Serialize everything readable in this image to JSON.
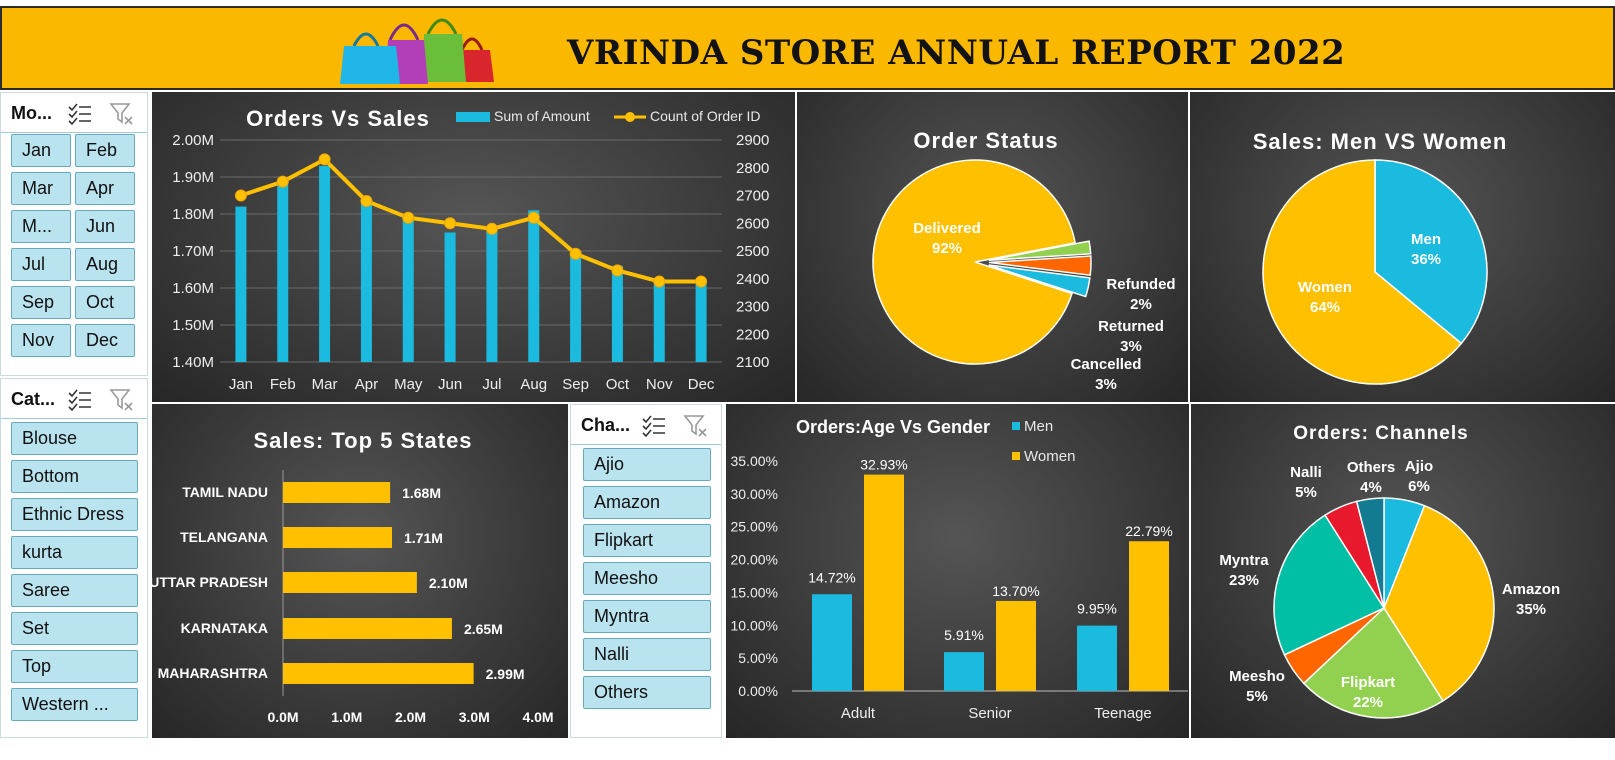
{
  "header": {
    "title": "VRINDA STORE ANNUAL REPORT 2022"
  },
  "slicers": {
    "month": {
      "title": "Mo...",
      "items": [
        "Jan",
        "Feb",
        "Mar",
        "Apr",
        "M...",
        "Jun",
        "Jul",
        "Aug",
        "Sep",
        "Oct",
        "Nov",
        "Dec"
      ]
    },
    "category": {
      "title": "Cat...",
      "items": [
        "Blouse",
        "Bottom",
        "Ethnic Dress",
        "kurta",
        "Saree",
        "Set",
        "Top",
        "Western ..."
      ]
    },
    "channel": {
      "title": "Cha...",
      "items": [
        "Ajio",
        "Amazon",
        "Flipkart",
        "Meesho",
        "Myntra",
        "Nalli",
        "Others"
      ]
    }
  },
  "colors": {
    "cyan": "#1BBBE0",
    "gold": "#FFC000",
    "green": "#92D050",
    "orange": "#FF6600",
    "teal": "#00BFA5",
    "red": "#E8192C",
    "darkteal": "#127A91",
    "banner": "#FBB800"
  },
  "chart_data": [
    {
      "type": "bar",
      "title": "Orders Vs Sales",
      "categories": [
        "Jan",
        "Feb",
        "Mar",
        "Apr",
        "May",
        "Jun",
        "Jul",
        "Aug",
        "Sep",
        "Oct",
        "Nov",
        "Dec"
      ],
      "series": [
        {
          "name": "Sum of Amount",
          "type": "bar",
          "axis": "left",
          "values": [
            1.82,
            1.88,
            1.93,
            1.83,
            1.79,
            1.75,
            1.76,
            1.81,
            1.69,
            1.66,
            1.61,
            1.61
          ]
        },
        {
          "name": "Count of Order ID",
          "type": "line",
          "axis": "right",
          "values": [
            2700,
            2750,
            2830,
            2680,
            2620,
            2600,
            2580,
            2620,
            2490,
            2430,
            2390,
            2390
          ]
        }
      ],
      "ylim_left": [
        1.4,
        2.0
      ],
      "yticks_left": [
        "1.40M",
        "1.50M",
        "1.60M",
        "1.70M",
        "1.80M",
        "1.90M",
        "2.00M"
      ],
      "ylim_right": [
        2100,
        2900
      ],
      "yticks_right": [
        "2100",
        "2200",
        "2300",
        "2400",
        "2500",
        "2600",
        "2700",
        "2800",
        "2900"
      ],
      "legend": "top-right",
      "grid": true
    },
    {
      "type": "pie",
      "title": "Order Status",
      "slices": [
        {
          "label": "Delivered",
          "value": 92,
          "pct": "92%",
          "color": "#FFC000"
        },
        {
          "label": "Refunded",
          "value": 2,
          "pct": "2%",
          "color": "#92D050"
        },
        {
          "label": "Returned",
          "value": 3,
          "pct": "3%",
          "color": "#FF6600"
        },
        {
          "label": "Cancelled",
          "value": 3,
          "pct": "3%",
          "color": "#1BBBE0"
        }
      ]
    },
    {
      "type": "pie",
      "title": "Sales: Men VS Women",
      "slices": [
        {
          "label": "Men",
          "value": 36,
          "pct": "36%",
          "color": "#1BBBE0"
        },
        {
          "label": "Women",
          "value": 64,
          "pct": "64%",
          "color": "#FFC000"
        }
      ]
    },
    {
      "type": "bar",
      "orientation": "horizontal",
      "title": "Sales: Top 5 States",
      "categories": [
        "TAMIL NADU",
        "TELANGANA",
        "UTTAR PRADESH",
        "KARNATAKA",
        "MAHARASHTRA"
      ],
      "values": [
        1.68,
        1.71,
        2.1,
        2.65,
        2.99
      ],
      "labels": [
        "1.68M",
        "1.71M",
        "2.10M",
        "2.65M",
        "2.99M"
      ],
      "xlim": [
        0,
        4
      ],
      "xticks": [
        "0.0M",
        "1.0M",
        "2.0M",
        "3.0M",
        "4.0M"
      ]
    },
    {
      "type": "bar",
      "title": "Orders:Age Vs Gender",
      "categories": [
        "Adult",
        "Senior",
        "Teenage"
      ],
      "series": [
        {
          "name": "Men",
          "values": [
            14.72,
            5.91,
            9.95
          ],
          "labels": [
            "14.72%",
            "5.91%",
            "9.95%"
          ]
        },
        {
          "name": "Women",
          "values": [
            32.93,
            13.7,
            22.79
          ],
          "labels": [
            "32.93%",
            "13.70%",
            "22.79%"
          ]
        }
      ],
      "ylim": [
        0,
        35
      ],
      "yticks": [
        "0.00%",
        "5.00%",
        "10.00%",
        "15.00%",
        "20.00%",
        "25.00%",
        "30.00%",
        "35.00%"
      ],
      "legend": "top-right"
    },
    {
      "type": "pie",
      "title": "Orders: Channels",
      "slices": [
        {
          "label": "Ajio",
          "value": 6,
          "pct": "6%",
          "color": "#1BBBE0"
        },
        {
          "label": "Amazon",
          "value": 35,
          "pct": "35%",
          "color": "#FFC000"
        },
        {
          "label": "Flipkart",
          "value": 22,
          "pct": "22%",
          "color": "#92D050"
        },
        {
          "label": "Meesho",
          "value": 5,
          "pct": "5%",
          "color": "#FF6600"
        },
        {
          "label": "Myntra",
          "value": 23,
          "pct": "23%",
          "color": "#00BFA5"
        },
        {
          "label": "Nalli",
          "value": 5,
          "pct": "5%",
          "color": "#E8192C"
        },
        {
          "label": "Others",
          "value": 4,
          "pct": "4%",
          "color": "#127A91"
        }
      ]
    }
  ]
}
